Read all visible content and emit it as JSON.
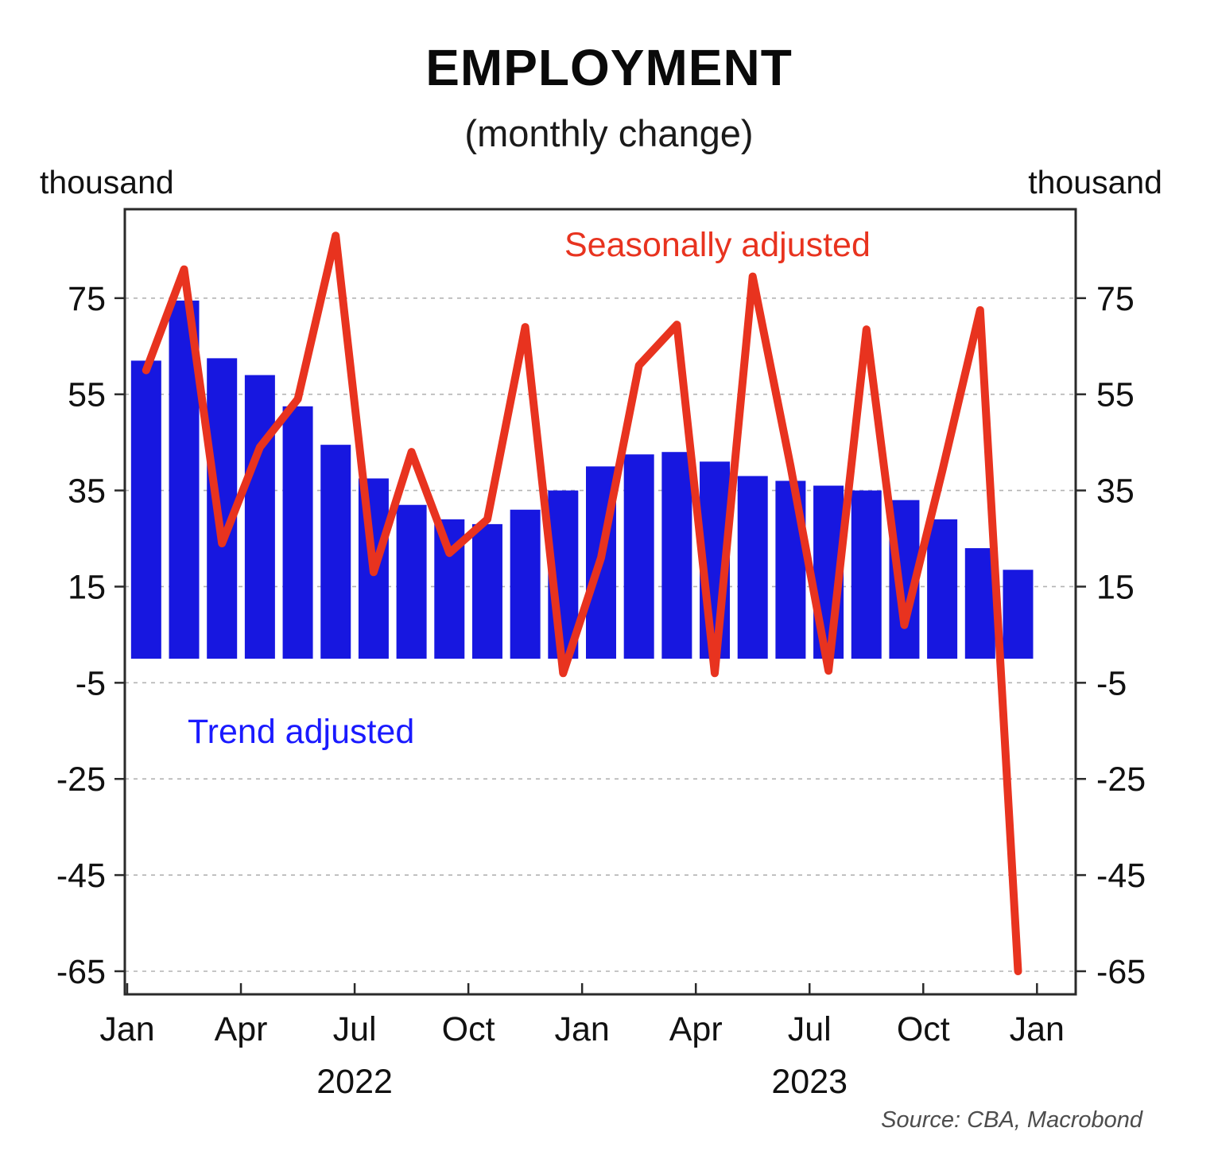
{
  "title": "EMPLOYMENT",
  "subtitle": "(monthly change)",
  "axis_units": {
    "left": "thousand",
    "right": "thousand"
  },
  "legend": {
    "seasonally_label": "Seasonally adjusted",
    "trend_label": "Trend adjusted"
  },
  "source": "Source: CBA, Macrobond",
  "colors": {
    "bar_blue": "#1717e0",
    "trend_label_blue": "#1a1aff",
    "line_red": "#e8331f",
    "gridline": "#b3b3b3",
    "axis": "#2a2a2a",
    "text": "#111111",
    "source_text": "#4d4d4d"
  },
  "chart_data": {
    "type": "bar+line",
    "title": "EMPLOYMENT",
    "subtitle": "(monthly change)",
    "ylabel_left": "thousand",
    "ylabel_right": "thousand",
    "grid": "dashed-horizontal",
    "y_ticks": [
      75,
      55,
      35,
      15,
      -5,
      -25,
      -45,
      -65
    ],
    "ylim": [
      -69.8,
      93.5
    ],
    "categories": [
      "Jan 2022",
      "Feb 2022",
      "Mar 2022",
      "Apr 2022",
      "May 2022",
      "Jun 2022",
      "Jul 2022",
      "Aug 2022",
      "Sep 2022",
      "Oct 2022",
      "Nov 2022",
      "Dec 2022",
      "Jan 2023",
      "Feb 2023",
      "Mar 2023",
      "Apr 2023",
      "May 2023",
      "Jun 2023",
      "Jul 2023",
      "Aug 2023",
      "Sep 2023",
      "Oct 2023",
      "Nov 2023",
      "Dec 2023"
    ],
    "x_ticks": [
      {
        "label": "Jan",
        "month_index": 0
      },
      {
        "label": "Apr",
        "month_index": 3
      },
      {
        "label": "Jul",
        "month_index": 6
      },
      {
        "label": "Oct",
        "month_index": 9
      },
      {
        "label": "Jan",
        "month_index": 12
      },
      {
        "label": "Apr",
        "month_index": 15
      },
      {
        "label": "Jul",
        "month_index": 18
      },
      {
        "label": "Oct",
        "month_index": 21
      },
      {
        "label": "Jan",
        "month_index": 24
      }
    ],
    "year_labels": [
      {
        "label": "2022",
        "month_index": 6
      },
      {
        "label": "2023",
        "month_index": 18
      }
    ],
    "series": [
      {
        "name": "Trend adjusted",
        "type": "bar",
        "color": "#1717e0",
        "values": [
          62,
          74.5,
          62.5,
          59,
          52.5,
          44.5,
          37.5,
          32,
          29,
          28,
          31,
          35,
          40,
          42.5,
          43,
          41,
          38,
          37,
          36,
          35,
          33,
          29,
          23,
          18.5
        ]
      },
      {
        "name": "Seasonally adjusted",
        "type": "line",
        "color": "#e8331f",
        "values": [
          60,
          81,
          24,
          44,
          54,
          88,
          18,
          43,
          22,
          29,
          69,
          -3,
          21,
          61,
          69.5,
          -3,
          79.5,
          40,
          -2.5,
          68.5,
          7,
          39,
          72.5,
          -65
        ]
      }
    ],
    "legend_position": "inside-plot"
  }
}
